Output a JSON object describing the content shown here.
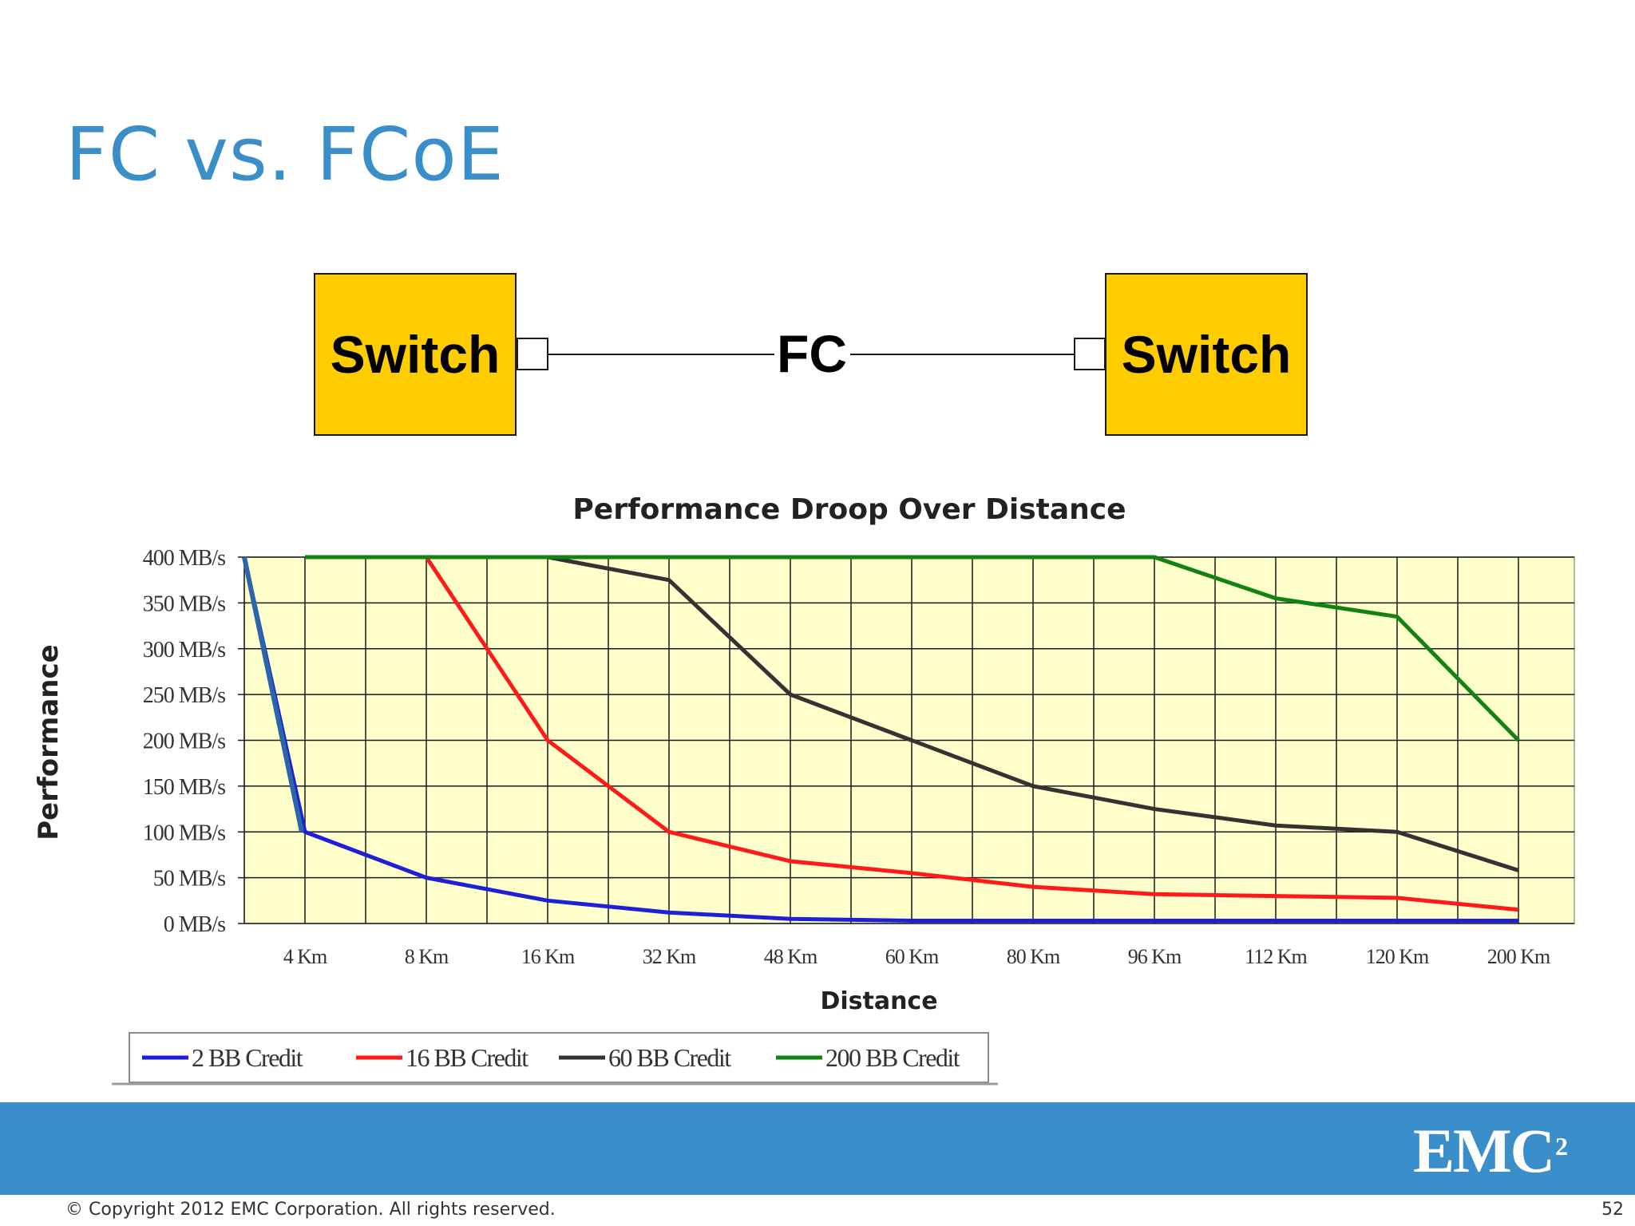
{
  "slide": {
    "title": "FC vs. FCoE",
    "copyright": "© Copyright 2012 EMC Corporation. All rights reserved.",
    "page_number": "52",
    "logo_text": "EMC",
    "logo_sup": "2"
  },
  "diagram": {
    "left_switch": "Switch",
    "right_switch": "Switch",
    "link_label": "FC",
    "switch_color": "#ffcc00"
  },
  "chart_data": {
    "type": "line",
    "title": "Performance Droop Over Distance",
    "xlabel": "Distance",
    "ylabel": "Performance",
    "categories": [
      "4 Km",
      "8 Km",
      "16 Km",
      "32 Km",
      "48 Km",
      "60 Km",
      "80 Km",
      "96 Km",
      "112 Km",
      "120 Km",
      "200 Km"
    ],
    "y_ticks": [
      "0 MB/s",
      "50 MB/s",
      "100 MB/s",
      "150 MB/s",
      "200 MB/s",
      "250 MB/s",
      "300 MB/s",
      "350 MB/s",
      "400 MB/s"
    ],
    "ylim": [
      0,
      400
    ],
    "grid": true,
    "legend_position": "bottom-left",
    "plot_background": "#ffffcc",
    "series": [
      {
        "name": "2 BB Credit",
        "color": "#1f1fd8",
        "start_value": 400,
        "values": [
          100,
          50,
          25,
          12,
          5,
          3,
          3,
          3,
          3,
          3,
          3
        ]
      },
      {
        "name": "16 BB Credit",
        "color": "#ff1a1a",
        "values": [
          null,
          400,
          200,
          100,
          68,
          55,
          40,
          32,
          30,
          28,
          15
        ]
      },
      {
        "name": "60 BB Credit",
        "color": "#333333",
        "values": [
          null,
          null,
          400,
          375,
          250,
          200,
          150,
          125,
          107,
          100,
          58
        ]
      },
      {
        "name": "200 BB Credit",
        "color": "#128212",
        "values": [
          400,
          400,
          400,
          400,
          400,
          400,
          400,
          400,
          355,
          335,
          200
        ]
      }
    ]
  }
}
